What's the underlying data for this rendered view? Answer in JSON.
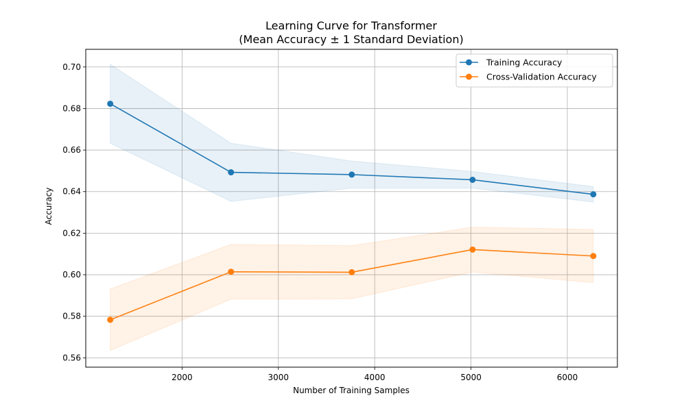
{
  "chart_data": {
    "type": "line",
    "title": "Learning Curve for Transformer",
    "subtitle": "(Mean Accuracy ± 1 Standard Deviation)",
    "xlabel": "Number of Training Samples",
    "ylabel": "Accuracy",
    "xlim": [
      1000,
      6520
    ],
    "ylim": [
      0.5555,
      0.7085
    ],
    "xticks": [
      2000,
      3000,
      4000,
      5000,
      6000
    ],
    "yticks": [
      0.56,
      0.58,
      0.6,
      0.62,
      0.64,
      0.66,
      0.68,
      0.7
    ],
    "x": [
      1254,
      2508,
      3762,
      5016,
      6270
    ],
    "grid": true,
    "legend_position": "top-right",
    "series": [
      {
        "name": "Training Accuracy",
        "color": "#1f77b4",
        "values": [
          0.6823,
          0.6493,
          0.6482,
          0.6457,
          0.6387
        ],
        "std": [
          0.019,
          0.014,
          0.0065,
          0.004,
          0.0037
        ]
      },
      {
        "name": "Cross-Validation Accuracy",
        "color": "#ff7f0e",
        "values": [
          0.5783,
          0.6014,
          0.6012,
          0.6121,
          0.609
        ],
        "std": [
          0.0148,
          0.0132,
          0.0128,
          0.0108,
          0.0128
        ]
      }
    ]
  }
}
